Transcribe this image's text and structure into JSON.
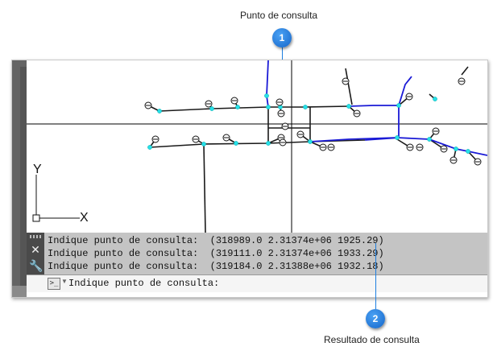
{
  "captions": {
    "top": "Punto de consulta",
    "bottom": "Resultado de consulta"
  },
  "badges": {
    "one": "1",
    "two": "2"
  },
  "ucs_icon": {
    "y_label": "Y",
    "x_label": "X"
  },
  "command_window": {
    "history": [
      "Indique punto de consulta:  (318989.0 2.31374e+06 1925.29)",
      "Indique punto de consulta:  (319111.0 2.31374e+06 1933.29)",
      "Indique punto de consulta:  (319184.0 2.31388e+06 1932.18)"
    ],
    "prompt": "Indique punto de consulta:",
    "tool_icons": [
      "close-icon",
      "wrench-icon"
    ]
  },
  "colors": {
    "accent": "#1e7fe0",
    "network_blue": "#1a1ad6",
    "node_cyan": "#27e0e8",
    "command_bg": "#c4c4c4"
  }
}
